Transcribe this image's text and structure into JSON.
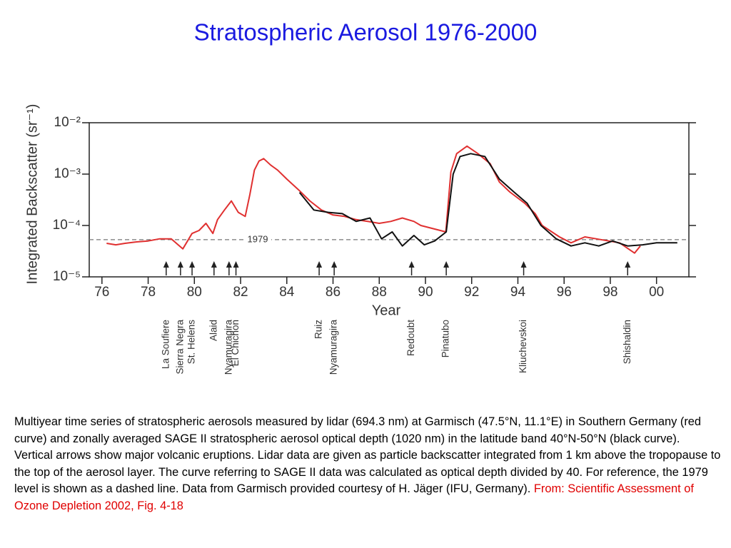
{
  "chart_data": {
    "type": "line",
    "title": "Stratospheric Aerosol 1976-2000",
    "y_label": "Integrated Backscatter (sr⁻¹)",
    "x_label": "Year",
    "log_y": true,
    "xlim": [
      1975.45,
      2001.4
    ],
    "ylim": [
      1e-05,
      0.01
    ],
    "xticks": [
      {
        "value": 1976,
        "label": "76"
      },
      {
        "value": 1978,
        "label": "78"
      },
      {
        "value": 1980,
        "label": "80"
      },
      {
        "value": 1982,
        "label": "82"
      },
      {
        "value": 1984,
        "label": "84"
      },
      {
        "value": 1986,
        "label": "86"
      },
      {
        "value": 1988,
        "label": "88"
      },
      {
        "value": 1990,
        "label": "90"
      },
      {
        "value": 1992,
        "label": "92"
      },
      {
        "value": 1994,
        "label": "94"
      },
      {
        "value": 1996,
        "label": "96"
      },
      {
        "value": 1998,
        "label": "98"
      },
      {
        "value": 2000,
        "label": "00"
      }
    ],
    "yticks": [
      {
        "value": 0.01,
        "label": "10⁻²"
      },
      {
        "value": 0.001,
        "label": "10⁻³"
      },
      {
        "value": 0.0001,
        "label": "10⁻⁴"
      },
      {
        "value": 1e-05,
        "label": "10⁻⁵"
      }
    ],
    "reference_line": {
      "value": 5.3e-05,
      "label": "1979"
    },
    "series": [
      {
        "color": "#e03030",
        "x": [
          1976.2,
          1976.6,
          1977.0,
          1977.5,
          1978.0,
          1978.5,
          1979.0,
          1979.5,
          1979.9,
          1980.2,
          1980.5,
          1980.8,
          1981.0,
          1981.3,
          1981.6,
          1981.9,
          1982.2,
          1982.4,
          1982.6,
          1982.8,
          1983.0,
          1983.3,
          1983.6,
          1984.0,
          1984.5,
          1985.0,
          1985.5,
          1986.0,
          1986.5,
          1987.0,
          1987.5,
          1988.0,
          1988.5,
          1989.0,
          1989.5,
          1989.8,
          1990.88,
          1991.1,
          1991.35,
          1991.8,
          1992.27,
          1992.8,
          1993.2,
          1993.65,
          1994.3,
          1994.75,
          1995.05,
          1995.8,
          1996.3,
          1996.9,
          1997.5,
          1998.4,
          1999.05,
          1999.3
        ],
        "values": [
          4.5e-05,
          4.2e-05,
          4.5e-05,
          4.8e-05,
          5e-05,
          5.5e-05,
          5.5e-05,
          3.5e-05,
          7e-05,
          8e-05,
          0.00011,
          7e-05,
          0.00013,
          0.0002,
          0.0003,
          0.00018,
          0.00015,
          0.0004,
          0.0012,
          0.0018,
          0.002,
          0.0015,
          0.0012,
          0.0008,
          0.0005,
          0.0003,
          0.0002,
          0.00016,
          0.00015,
          0.00013,
          0.00012,
          0.00011,
          0.00012,
          0.00014,
          0.00012,
          0.0001,
          7.5e-05,
          0.0011,
          0.0025,
          0.0035,
          0.0025,
          0.0016,
          0.0007,
          0.00045,
          0.00027,
          0.00017,
          0.0001,
          6e-05,
          4.6e-05,
          6e-05,
          5.4e-05,
          4.6e-05,
          2.9e-05,
          4e-05
        ]
      },
      {
        "color": "#111111",
        "x": [
          1984.55,
          1985.17,
          1985.8,
          1986.4,
          1987.0,
          1987.6,
          1988.1,
          1988.56,
          1989.0,
          1989.5,
          1989.95,
          1990.4,
          1990.9,
          1991.2,
          1991.5,
          1991.96,
          1992.57,
          1993.2,
          1993.8,
          1994.4,
          1995.0,
          1995.66,
          1996.3,
          1996.9,
          1997.5,
          1998.1,
          1998.75,
          1999.4,
          2000.0,
          2000.9
        ],
        "values": [
          0.00044,
          0.0002,
          0.00018,
          0.00017,
          0.00012,
          0.00014,
          5.5e-05,
          7.5e-05,
          4e-05,
          6.4e-05,
          4.2e-05,
          5e-05,
          7.5e-05,
          0.001,
          0.0022,
          0.0025,
          0.0022,
          0.0008,
          0.00046,
          0.00027,
          0.0001,
          5.5e-05,
          4e-05,
          4.6e-05,
          4e-05,
          5e-05,
          4e-05,
          4.2e-05,
          4.6e-05,
          4.6e-05
        ]
      }
    ],
    "eruptions": [
      {
        "name": "La Soufiere",
        "x": 1978.78
      },
      {
        "name": "Sierra Negra",
        "x": 1979.4
      },
      {
        "name": "St. Helens",
        "x": 1979.9
      },
      {
        "name": "Alaid",
        "x": 1980.85
      },
      {
        "name": "Nyamuragira",
        "x": 1981.5
      },
      {
        "name": "El Chichon",
        "x": 1981.8
      },
      {
        "name": "Ruiz",
        "x": 1985.4
      },
      {
        "name": "Nyamuragira",
        "x": 1986.05
      },
      {
        "name": "Redoubt",
        "x": 1989.4
      },
      {
        "name": "Pinatubo",
        "x": 1990.9
      },
      {
        "name": "Kliuchevskoi",
        "x": 1994.25
      },
      {
        "name": "Shishaldin",
        "x": 1998.75
      }
    ],
    "caption": "Multiyear time series of stratospheric aerosols measured by lidar (694.3 nm) at Garmisch (47.5°N, 11.1°E) in Southern Germany (red curve) and zonally averaged SAGE II stratospheric aerosol optical depth (1020 nm) in the latitude band 40°N-50°N (black curve). Vertical arrows show major volcanic eruptions. Lidar data are given as particle backscatter integrated from 1 km above the tropopause to the top of the aerosol layer. The curve referring to SAGE II data was calculated as optical depth divided by 40. For reference, the 1979 level is shown as a dashed line. Data from Garmisch provided courtesy of H. Jäger (IFU, Germany).",
    "source": "From: Scientific Assessment of Ozone Depletion 2002, Fig. 4-18"
  }
}
